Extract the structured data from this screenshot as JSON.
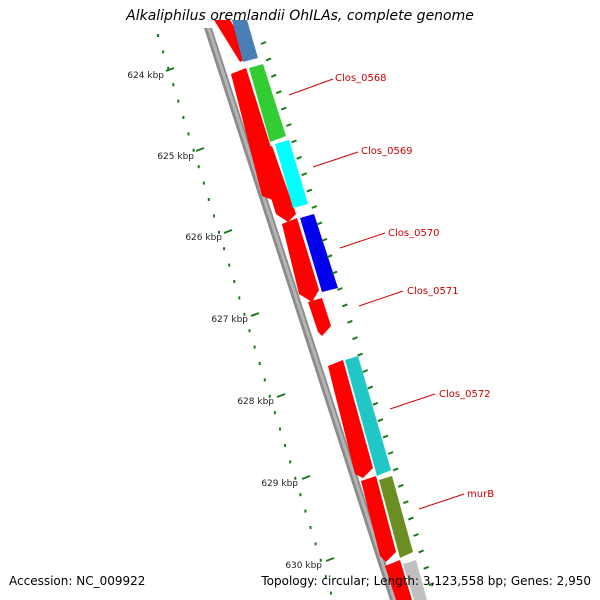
{
  "title": "Alkaliphilus oremlandii OhILAs, complete genome",
  "accession": "Accession: NC_009922",
  "summary": "Topology: circular; Length: 3,123,558 bp; Genes: 2,950",
  "axis": {
    "unit": "kbp",
    "tick_labels": [
      "624 kbp",
      "625 kbp",
      "626 kbp",
      "627 kbp",
      "628 kbp",
      "629 kbp",
      "630 kbp"
    ]
  },
  "gene_labels": [
    "Clos_0568",
    "Clos_0569",
    "Clos_0570",
    "Clos_0571",
    "Clos_0572",
    "murB"
  ],
  "colors": {
    "backbone": "#8c8c8c",
    "cds": "#ff0000",
    "tick": "#1b7a1b",
    "label": "#cc0000",
    "gene_colors": [
      "#4a7fb5",
      "#33cc33",
      "#00ffff",
      "#0000ee",
      "#ff0000",
      "#21c7c7",
      "#6b8e23",
      "#c0c0c0"
    ]
  }
}
